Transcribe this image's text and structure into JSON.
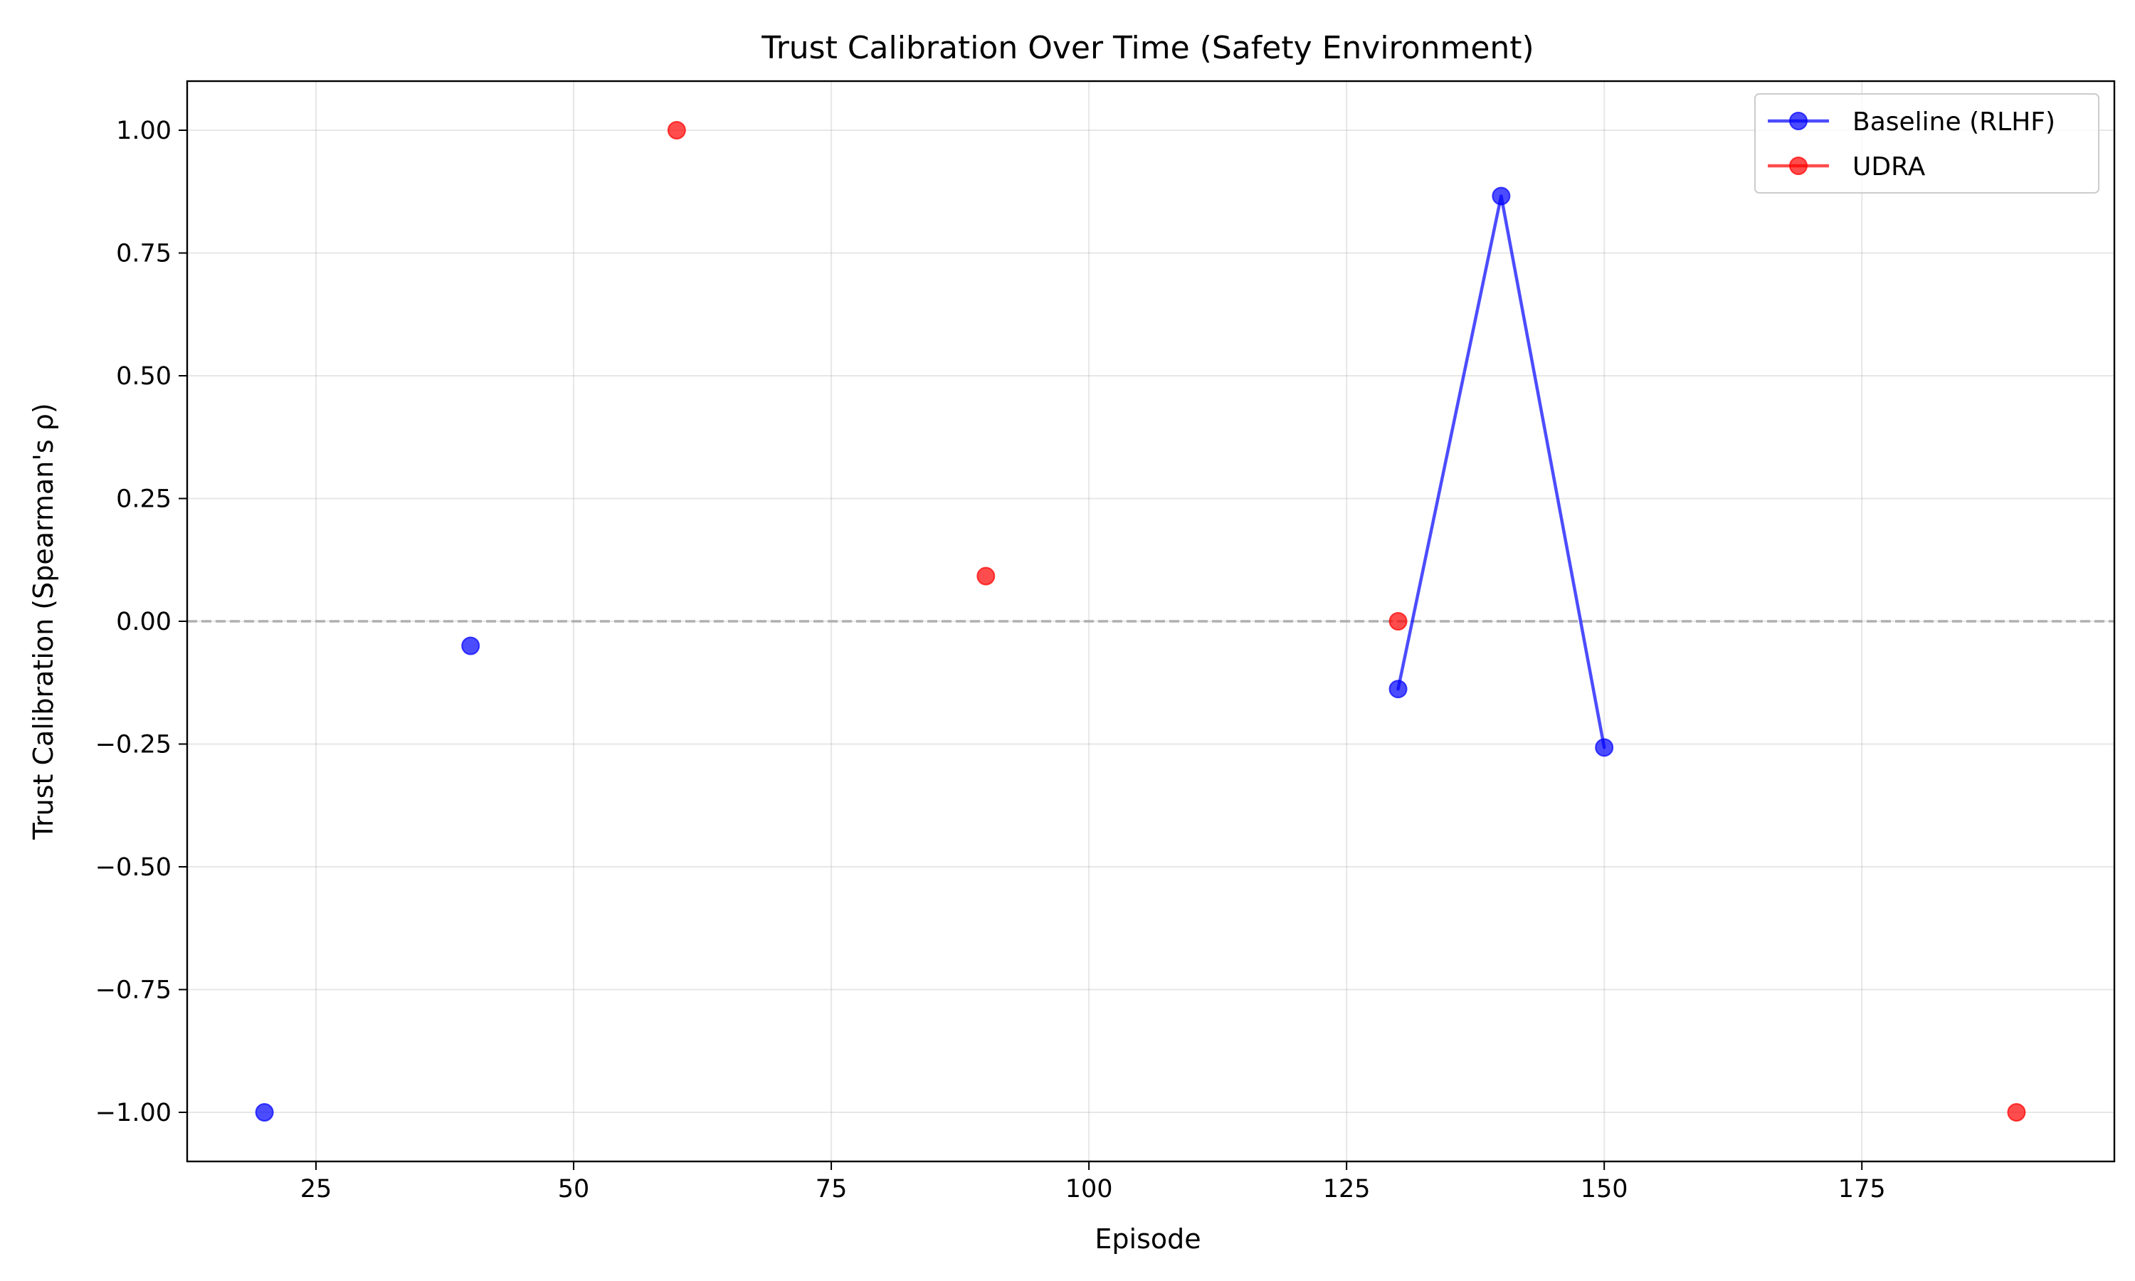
{
  "chart_data": {
    "type": "line",
    "title": "Trust Calibration Over Time (Safety Environment)",
    "xlabel": "Episode",
    "ylabel": "Trust Calibration (Spearman's ρ)",
    "xlim": [
      12.5,
      199.5
    ],
    "ylim": [
      -1.1,
      1.1
    ],
    "xticks": [
      25,
      50,
      75,
      100,
      125,
      150,
      175
    ],
    "xtick_labels": [
      "25",
      "50",
      "75",
      "100",
      "125",
      "150",
      "175"
    ],
    "yticks": [
      -1.0,
      -0.75,
      -0.5,
      -0.25,
      0.0,
      0.25,
      0.5,
      0.75,
      1.0
    ],
    "ytick_labels": [
      "−1.00",
      "−0.75",
      "−0.50",
      "−0.25",
      "0.00",
      "0.25",
      "0.50",
      "0.75",
      "1.00"
    ],
    "grid": true,
    "legend_position": "top-right",
    "reference_line": {
      "y": 0.0,
      "style": "dashed",
      "color": "#b0b0b0"
    },
    "series": [
      {
        "name": "Baseline (RLHF)",
        "color": "#0000ff",
        "points": [
          {
            "x": 20,
            "y": -1.0
          },
          null,
          {
            "x": 40,
            "y": -0.05
          },
          null,
          {
            "x": 130,
            "y": -0.138
          },
          {
            "x": 140,
            "y": 0.866
          },
          {
            "x": 150,
            "y": -0.257
          }
        ]
      },
      {
        "name": "UDRA",
        "color": "#ff0000",
        "points": [
          {
            "x": 60,
            "y": 1.0
          },
          null,
          {
            "x": 90,
            "y": 0.092
          },
          null,
          {
            "x": 130,
            "y": 0.0
          },
          null,
          {
            "x": 190,
            "y": -1.0
          }
        ]
      }
    ]
  }
}
